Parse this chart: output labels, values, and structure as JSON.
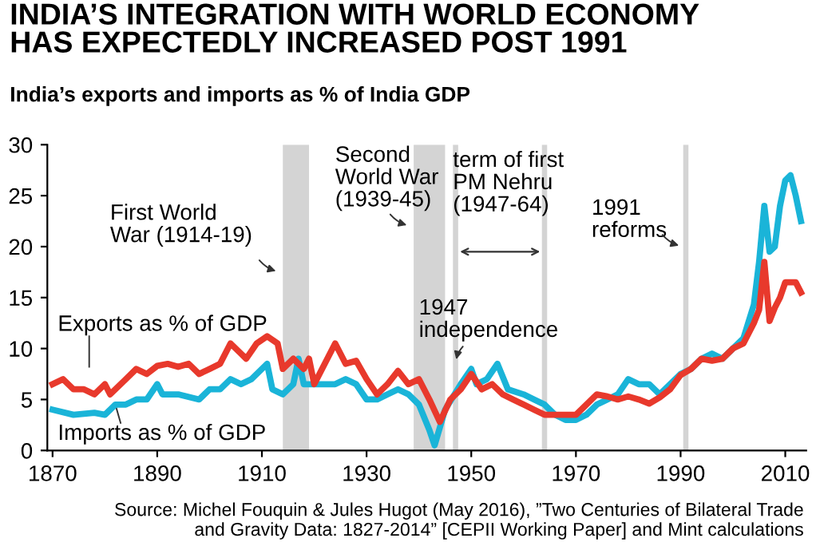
{
  "chart_data": {
    "type": "line",
    "title": "INDIA’S INTEGRATION WITH WORLD ECONOMY\nHAS EXPECTEDLY INCREASED POST 1991",
    "subtitle": "India’s exports and imports as % of India GDP",
    "xlim": [
      1869,
      2014
    ],
    "xticks": [
      1870,
      1890,
      1910,
      1930,
      1950,
      1970,
      1990,
      2010
    ],
    "ylim": [
      0,
      30
    ],
    "yticks": [
      0,
      5,
      10,
      15,
      20,
      25,
      30
    ],
    "grid": false,
    "legend": false,
    "series": [
      {
        "name": "Exports as % of GDP",
        "color": "#e8392c",
        "x": [
          1870,
          1872,
          1874,
          1876,
          1878,
          1880,
          1881,
          1884,
          1886,
          1888,
          1890,
          1892,
          1894,
          1896,
          1898,
          1900,
          1902,
          1904,
          1906,
          1907,
          1909,
          1911,
          1913,
          1914,
          1916,
          1918,
          1919,
          1920,
          1922,
          1924,
          1926,
          1928,
          1930,
          1932,
          1934,
          1936,
          1938,
          1940,
          1942,
          1944,
          1946,
          1948,
          1950,
          1952,
          1954,
          1956,
          1958,
          1960,
          1962,
          1964,
          1966,
          1968,
          1970,
          1972,
          1974,
          1976,
          1978,
          1980,
          1982,
          1984,
          1986,
          1988,
          1990,
          1992,
          1994,
          1996,
          1998,
          2000,
          2002,
          2004,
          2005,
          2006,
          2007,
          2008,
          2009,
          2010,
          2012,
          2013
        ],
        "values": [
          6.5,
          7,
          6,
          6,
          5.5,
          6.5,
          5.5,
          7,
          8,
          7.5,
          8.3,
          8.5,
          8.2,
          8.5,
          7.5,
          8,
          8.5,
          10.5,
          9.5,
          9,
          10.5,
          11.2,
          10.5,
          8,
          9,
          8,
          9,
          6.5,
          8.5,
          10.5,
          8.5,
          8.8,
          7,
          5.5,
          6.5,
          7.8,
          6.5,
          7,
          5,
          2.8,
          5,
          6,
          7.5,
          6,
          6.5,
          5.5,
          5,
          4.5,
          4,
          3.5,
          3.5,
          3.5,
          3.5,
          4.5,
          5.5,
          5.3,
          5,
          5.3,
          5,
          4.6,
          5.2,
          6,
          7.4,
          8,
          9,
          8.8,
          9,
          10,
          10.5,
          12.5,
          13.8,
          18.5,
          12.7,
          14,
          15,
          16.5,
          16.5,
          15.5
        ]
      },
      {
        "name": "Imports as % of GDP",
        "color": "#1ab4d8",
        "x": [
          1870,
          1874,
          1878,
          1880,
          1882,
          1884,
          1886,
          1888,
          1890,
          1891,
          1894,
          1898,
          1900,
          1902,
          1904,
          1906,
          1908,
          1911,
          1912,
          1914,
          1916,
          1917,
          1918,
          1920,
          1924,
          1926,
          1928,
          1930,
          1932,
          1934,
          1936,
          1938,
          1940,
          1942,
          1943,
          1945,
          1948,
          1950,
          1951,
          1953,
          1955,
          1957,
          1960,
          1962,
          1964,
          1966,
          1968,
          1970,
          1972,
          1974,
          1976,
          1978,
          1980,
          1982,
          1984,
          1986,
          1988,
          1990,
          1992,
          1994,
          1996,
          1998,
          2000,
          2002,
          2004,
          2005,
          2006,
          2007,
          2008,
          2009,
          2010,
          2011,
          2012,
          2013
        ],
        "values": [
          4,
          3.5,
          3.7,
          3.5,
          4.5,
          4.5,
          5,
          5,
          6.5,
          5.5,
          5.5,
          5,
          6,
          6,
          7,
          6.5,
          7,
          8.5,
          6,
          5.5,
          6.5,
          9,
          6.5,
          6.5,
          6.5,
          7,
          6.5,
          5,
          5,
          5.5,
          6,
          5.5,
          4.5,
          2,
          0.5,
          4,
          6.5,
          8,
          6.5,
          7,
          8.5,
          6,
          5.5,
          5,
          4.5,
          3.5,
          3,
          3,
          3.5,
          4.5,
          5,
          5.5,
          7,
          6.5,
          6.5,
          5.5,
          6.5,
          7.5,
          8,
          9,
          9.5,
          9,
          10,
          11,
          14.3,
          18.5,
          24,
          19.5,
          20,
          24,
          26.5,
          27,
          25,
          22.5
        ]
      }
    ],
    "bands": [
      {
        "axis": "x",
        "from": 1914,
        "to": 1919,
        "color": "#d4d4d4"
      },
      {
        "axis": "x",
        "from": 1939,
        "to": 1945,
        "color": "#d4d4d4"
      },
      {
        "axis": "x",
        "from": 1946.5,
        "to": 1947.5,
        "color": "#d4d4d4"
      },
      {
        "axis": "x",
        "from": 1963.5,
        "to": 1964.5,
        "color": "#d4d4d4"
      },
      {
        "axis": "x",
        "from": 1990.5,
        "to": 1991.5,
        "color": "#d4d4d4"
      }
    ],
    "annotations": [
      {
        "text": "First World\nWar (1914-19)",
        "x": 1914,
        "y": 17.5
      },
      {
        "text": "Second\nWorld War\n(1939-45)",
        "x": 1939,
        "y": 22
      },
      {
        "text": "term of first\nPM Nehru\n(1947-64)",
        "x": 1947,
        "y": 19.5
      },
      {
        "text": "1947\nindependence",
        "x": 1947,
        "y": 8.5
      },
      {
        "text": "1991\nreforms",
        "x": 1991,
        "y": 20
      },
      "Source: Michel Fouquin & Jules Hugot (May 2016), ”Two Centuries of Bilateral Trade\nand Gravity Data: 1827-2014” [CEPII Working Paper] and Mint calculations"
    ]
  }
}
